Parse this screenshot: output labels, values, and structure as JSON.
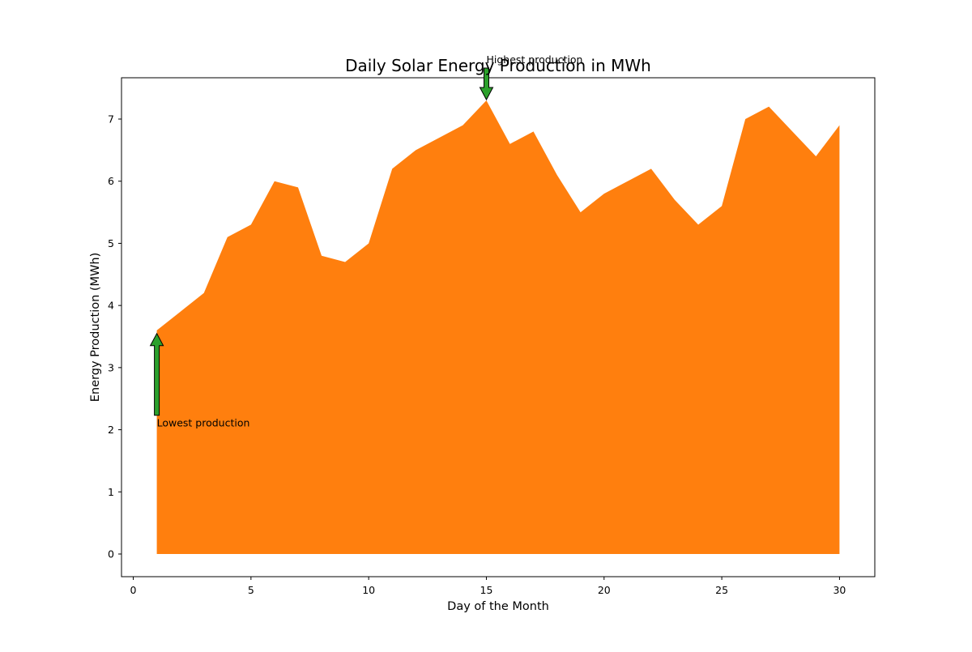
{
  "chart_data": {
    "type": "area",
    "title": "Daily Solar Energy Production in MWh",
    "xlabel": "Day of the Month",
    "ylabel": "Energy Production (MWh)",
    "xlim": [
      -0.5,
      31.5
    ],
    "ylim": [
      -0.365,
      7.665
    ],
    "xticks": [
      0,
      5,
      10,
      15,
      20,
      25,
      30
    ],
    "yticks": [
      0,
      1,
      2,
      3,
      4,
      5,
      6,
      7
    ],
    "grid": false,
    "series": [
      {
        "color": "#ff7f0e",
        "x": [
          1,
          2,
          3,
          4,
          5,
          6,
          7,
          8,
          9,
          10,
          11,
          12,
          13,
          14,
          15,
          16,
          17,
          18,
          19,
          20,
          21,
          22,
          23,
          24,
          25,
          26,
          27,
          28,
          29,
          30
        ],
        "y": [
          3.6,
          3.9,
          4.2,
          5.1,
          5.3,
          6.0,
          5.9,
          4.8,
          4.7,
          5.0,
          6.2,
          6.5,
          6.7,
          6.9,
          7.3,
          6.6,
          6.8,
          6.1,
          5.5,
          5.8,
          6.0,
          6.2,
          5.7,
          5.3,
          5.6,
          7.0,
          7.2,
          6.8,
          6.4,
          6.9
        ]
      }
    ],
    "annotations": [
      {
        "text": "Highest production",
        "point": [
          15,
          7.3
        ],
        "text_pos": [
          15,
          7.9
        ],
        "arrow_color": "#2ca02c"
      },
      {
        "text": "Lowest production",
        "point": [
          1,
          3.6
        ],
        "text_pos": [
          1,
          2.05
        ],
        "arrow_color": "#2ca02c"
      }
    ]
  }
}
